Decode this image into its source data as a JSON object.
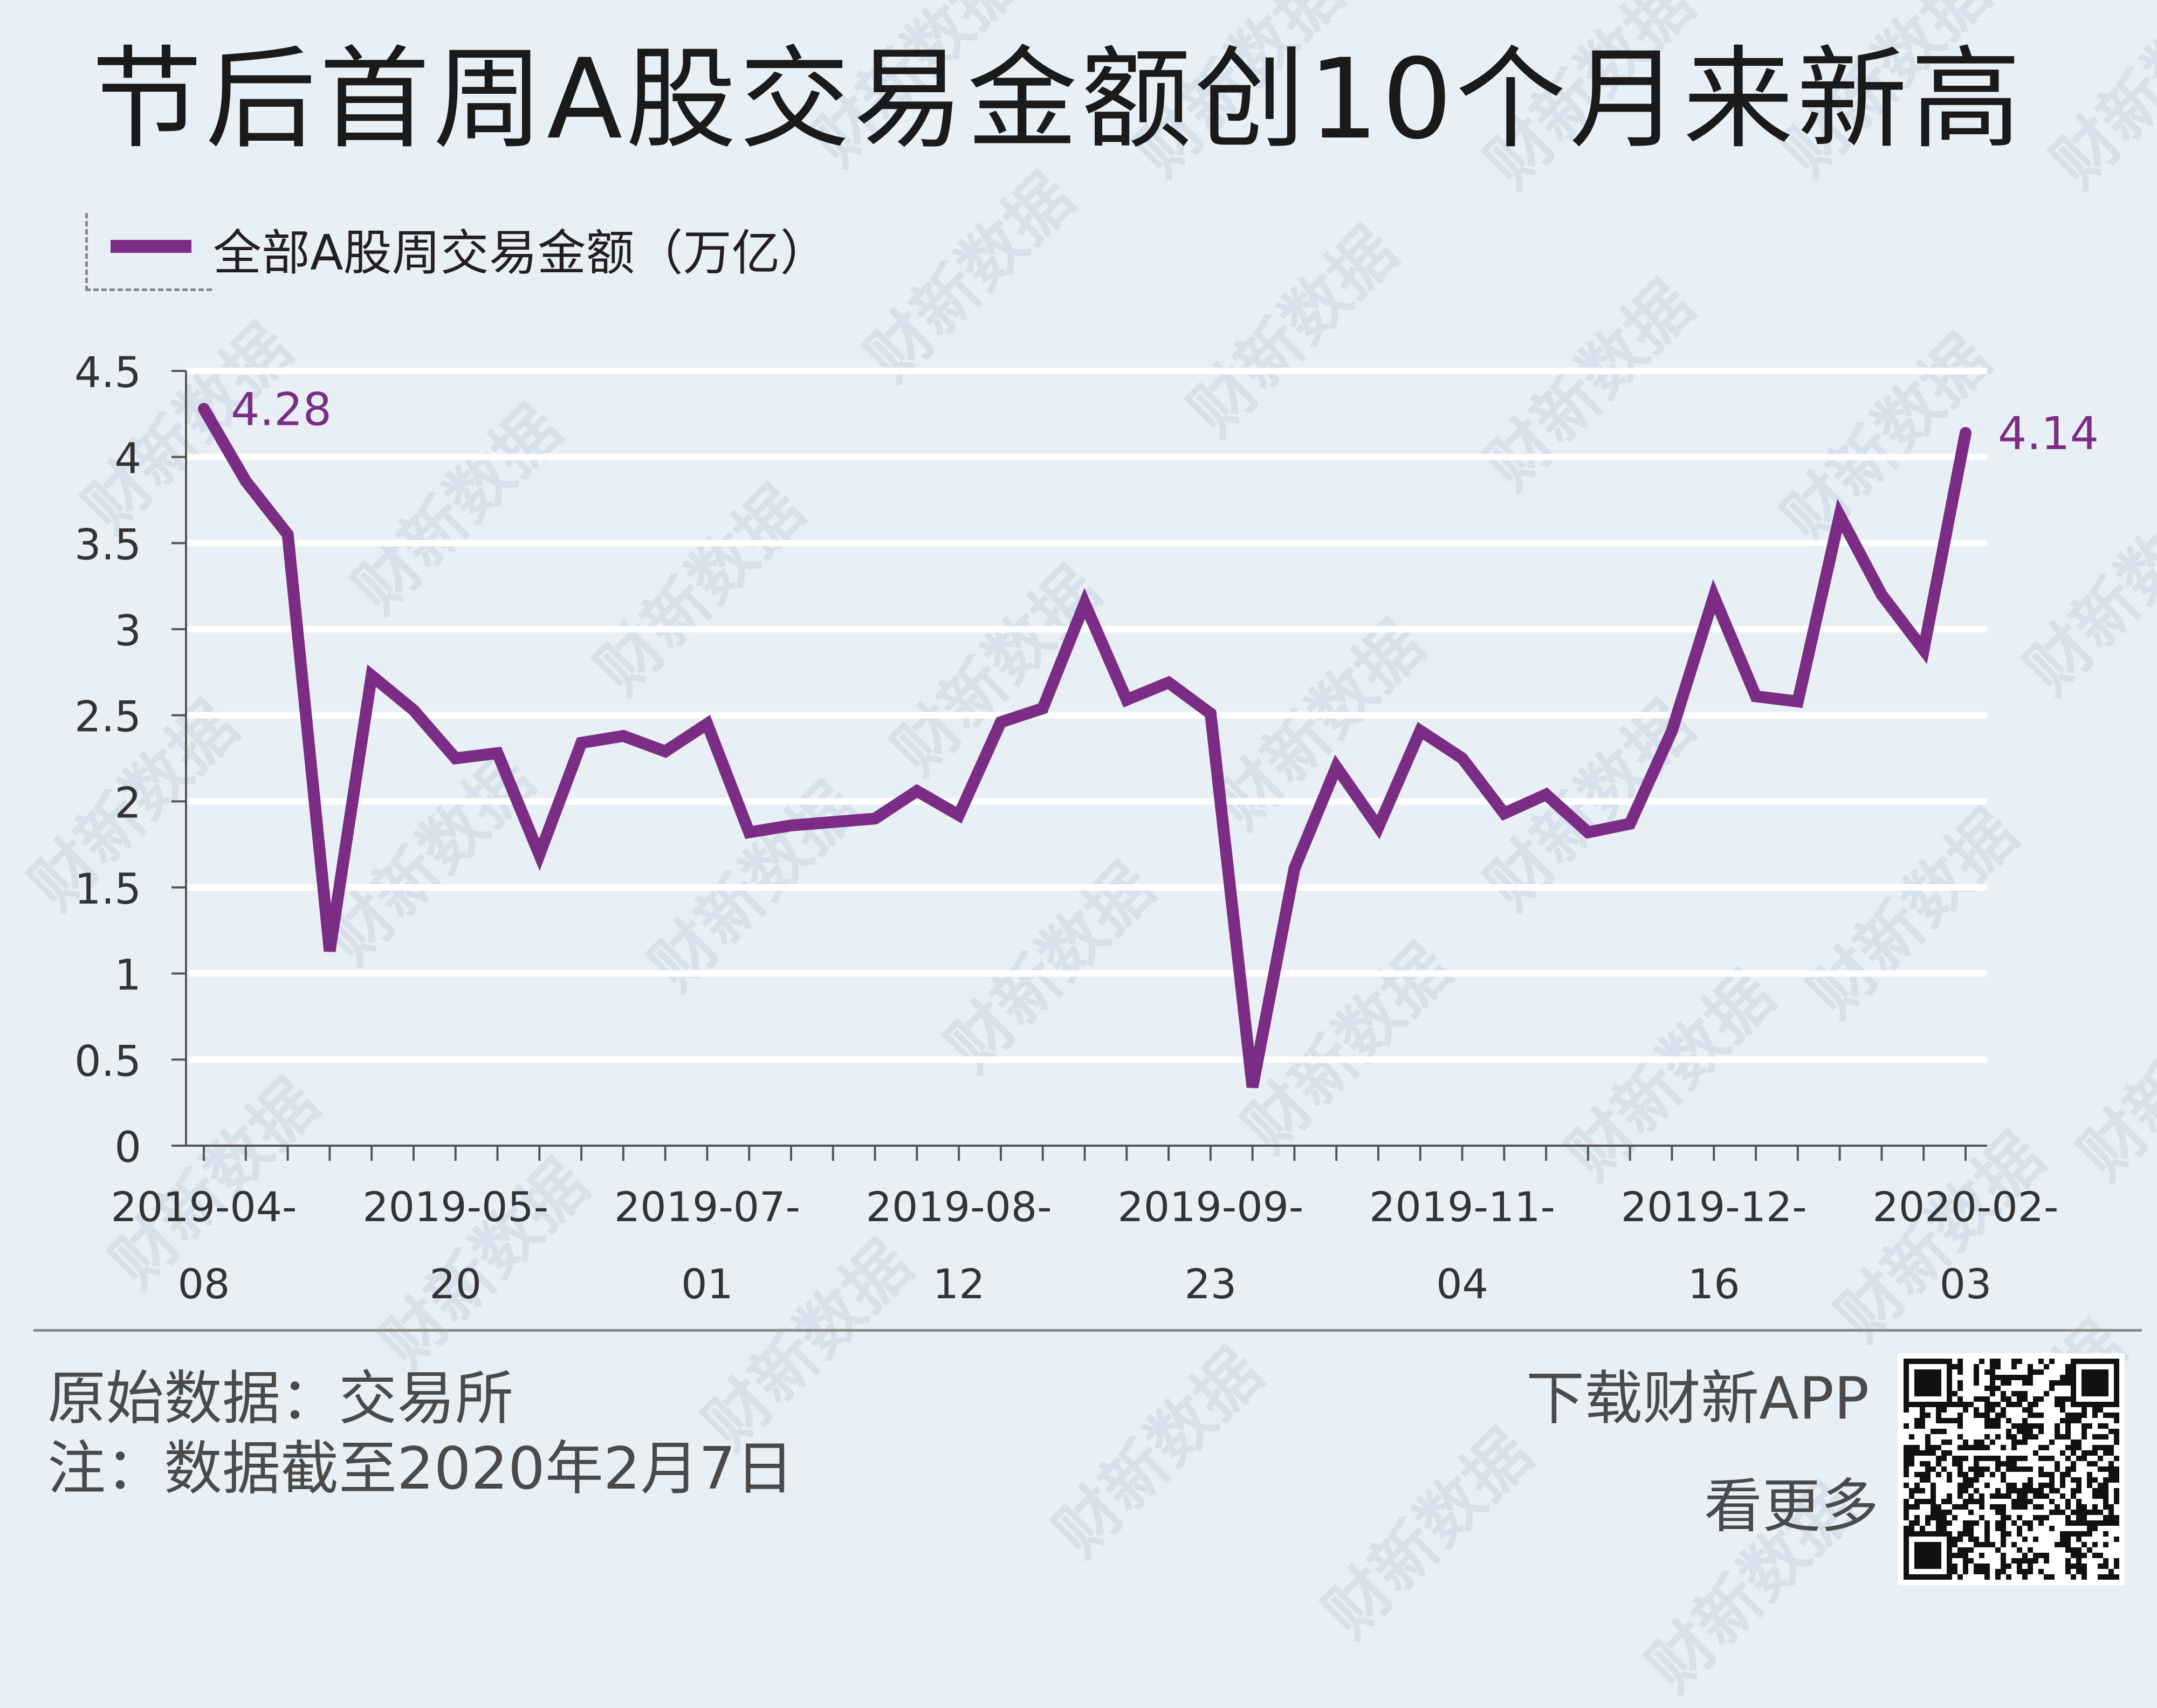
{
  "title": "节后首周A股交易金额创10个月来新高",
  "legend": {
    "label": "全部A股周交易金额（万亿）"
  },
  "colors": {
    "series": "#7b2d85",
    "gridline": "#ffffff",
    "axis": "#555555",
    "background": "#e9f0f5"
  },
  "chart_data": {
    "type": "line",
    "title": "节后首周A股交易金额创10个月来新高",
    "xlabel": "",
    "ylabel": "",
    "ylim": [
      0,
      4.5
    ],
    "yticks": [
      "0",
      "0.5",
      "1",
      "1.5",
      "2",
      "2.5",
      "3",
      "3.5",
      "4",
      "4.5"
    ],
    "xtick_labels": [
      {
        "index": 0,
        "line1": "2019-04-",
        "line2": "08"
      },
      {
        "index": 6,
        "line1": "2019-05-",
        "line2": "20"
      },
      {
        "index": 12,
        "line1": "2019-07-",
        "line2": "01"
      },
      {
        "index": 18,
        "line1": "2019-08-",
        "line2": "12"
      },
      {
        "index": 24,
        "line1": "2019-09-",
        "line2": "23"
      },
      {
        "index": 30,
        "line1": "2019-11-",
        "line2": "04"
      },
      {
        "index": 36,
        "line1": "2019-12-",
        "line2": "16"
      },
      {
        "index": 42,
        "line1": "2020-02-",
        "line2": "03"
      }
    ],
    "grid": true,
    "legend_position": "top-left",
    "series": [
      {
        "name": "全部A股周交易金额（万亿）",
        "values": [
          4.28,
          3.86,
          3.55,
          1.13,
          2.73,
          2.53,
          2.25,
          2.28,
          1.69,
          2.34,
          2.38,
          2.29,
          2.45,
          1.82,
          1.86,
          1.88,
          1.9,
          2.06,
          1.92,
          2.46,
          2.54,
          3.15,
          2.59,
          2.69,
          2.51,
          0.34,
          1.61,
          2.2,
          1.85,
          2.41,
          2.25,
          1.93,
          2.04,
          1.82,
          1.87,
          2.41,
          3.19,
          2.61,
          2.58,
          3.66,
          3.2,
          2.88,
          4.14
        ]
      }
    ],
    "annotations": [
      {
        "index": 0,
        "text": "4.28"
      },
      {
        "index": 42,
        "text": "4.14"
      }
    ]
  },
  "footer": {
    "source": "原始数据：交易所",
    "note": "注：数据截至2020年2月7日",
    "app_cta": "下载财新APP",
    "more_cta": "看更多"
  },
  "watermark": "财新数据"
}
